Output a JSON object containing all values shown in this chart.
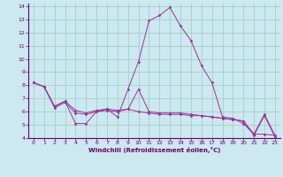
{
  "xlabel": "Windchill (Refroidissement éolien,°C)",
  "background_color": "#cce8f0",
  "grid_color": "#99ccbb",
  "line_color": "#993399",
  "axis_color": "#660066",
  "xlim": [
    -0.5,
    23.5
  ],
  "ylim": [
    4,
    14.2
  ],
  "yticks": [
    4,
    5,
    6,
    7,
    8,
    9,
    10,
    11,
    12,
    13,
    14
  ],
  "xticks": [
    0,
    1,
    2,
    3,
    4,
    5,
    6,
    7,
    8,
    9,
    10,
    11,
    12,
    13,
    14,
    15,
    16,
    17,
    18,
    19,
    20,
    21,
    22,
    23
  ],
  "series": [
    {
      "x": [
        0,
        1,
        2,
        3,
        4,
        5,
        6,
        7,
        8,
        9,
        10,
        11,
        12,
        13,
        14,
        15,
        16,
        17,
        18,
        19,
        20,
        21,
        22,
        23
      ],
      "y": [
        8.2,
        7.9,
        6.4,
        6.8,
        5.1,
        5.1,
        6.0,
        6.2,
        5.6,
        7.7,
        9.8,
        12.9,
        13.3,
        13.9,
        12.5,
        11.4,
        9.5,
        8.2,
        5.6,
        5.5,
        5.1,
        4.3,
        5.8,
        4.2
      ]
    },
    {
      "x": [
        0,
        1,
        2,
        3,
        4,
        5,
        6,
        7,
        8,
        9,
        10,
        11,
        12,
        13,
        14,
        15,
        16,
        17,
        18,
        19,
        20,
        21,
        22,
        23
      ],
      "y": [
        8.2,
        7.9,
        6.4,
        6.8,
        6.1,
        5.9,
        6.1,
        6.2,
        6.1,
        6.2,
        7.7,
        6.0,
        5.9,
        5.9,
        5.9,
        5.8,
        5.7,
        5.6,
        5.5,
        5.4,
        5.3,
        4.3,
        4.3,
        4.2
      ]
    },
    {
      "x": [
        0,
        1,
        2,
        3,
        4,
        5,
        6,
        7,
        8,
        9,
        10,
        11,
        12,
        13,
        14,
        15,
        16,
        17,
        18,
        19,
        20,
        21,
        22,
        23
      ],
      "y": [
        8.2,
        7.9,
        6.3,
        6.7,
        5.9,
        5.8,
        6.0,
        6.1,
        6.0,
        6.2,
        6.0,
        5.9,
        5.8,
        5.8,
        5.8,
        5.7,
        5.7,
        5.6,
        5.5,
        5.4,
        5.3,
        4.2,
        5.7,
        4.1
      ]
    }
  ]
}
